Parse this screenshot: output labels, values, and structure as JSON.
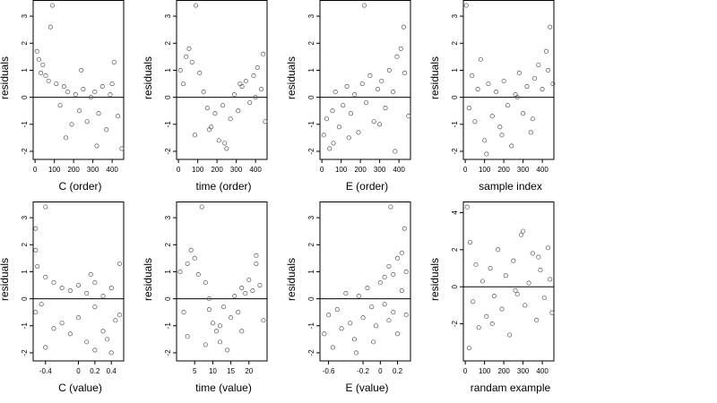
{
  "chart_data": [
    {
      "type": "scatter",
      "xlabel": "C (order)",
      "ylabel": "residuals",
      "xlim": [
        -10,
        460
      ],
      "ylim": [
        -2.3,
        3.6
      ],
      "xticks": [
        0,
        100,
        200,
        300,
        400
      ],
      "yticks": [
        -2,
        -1,
        0,
        1,
        2,
        3
      ],
      "hline": 0,
      "x": [
        10,
        20,
        30,
        40,
        55,
        70,
        90,
        110,
        130,
        150,
        170,
        190,
        210,
        230,
        250,
        270,
        290,
        310,
        330,
        350,
        370,
        390,
        410,
        430,
        450,
        80,
        160,
        240,
        320,
        400
      ],
      "y": [
        1.7,
        1.4,
        0.9,
        1.2,
        0.8,
        0.6,
        3.4,
        0.5,
        -0.3,
        0.4,
        0.2,
        -1.0,
        0.1,
        -0.5,
        0.3,
        -0.9,
        0.0,
        0.2,
        -0.6,
        0.4,
        -1.2,
        0.1,
        1.3,
        -0.7,
        -1.9,
        2.6,
        -1.5,
        1.0,
        -1.8,
        0.5
      ]
    },
    {
      "type": "scatter",
      "xlabel": "time (order)",
      "ylabel": "residuals",
      "xlim": [
        -10,
        460
      ],
      "ylim": [
        -2.3,
        3.6
      ],
      "xticks": [
        0,
        100,
        200,
        300,
        400
      ],
      "yticks": [
        -2,
        -1,
        0,
        1,
        2,
        3
      ],
      "hline": 0,
      "x": [
        10,
        25,
        40,
        55,
        70,
        90,
        110,
        130,
        150,
        170,
        190,
        210,
        230,
        250,
        270,
        290,
        310,
        330,
        350,
        370,
        390,
        410,
        430,
        450,
        85,
        160,
        240,
        320,
        400,
        440
      ],
      "y": [
        1.0,
        0.5,
        1.5,
        1.8,
        1.3,
        3.4,
        0.9,
        0.2,
        -0.4,
        -1.1,
        -0.6,
        -1.6,
        -0.3,
        -1.9,
        -0.8,
        0.1,
        -0.5,
        0.4,
        0.6,
        -0.2,
        0.8,
        1.1,
        0.3,
        -0.9,
        -1.4,
        -1.2,
        -1.7,
        0.5,
        0.0,
        1.6
      ]
    },
    {
      "type": "scatter",
      "xlabel": "E (order)",
      "ylabel": "residuals",
      "xlim": [
        -10,
        460
      ],
      "ylim": [
        -2.3,
        3.6
      ],
      "xticks": [
        0,
        100,
        200,
        300,
        400
      ],
      "yticks": [
        -2,
        -1,
        0,
        1,
        2,
        3
      ],
      "hline": 0,
      "x": [
        10,
        25,
        40,
        55,
        70,
        90,
        110,
        130,
        150,
        170,
        190,
        210,
        230,
        250,
        270,
        290,
        310,
        330,
        350,
        370,
        390,
        410,
        430,
        450,
        220,
        425,
        60,
        140,
        300,
        380
      ],
      "y": [
        -1.4,
        -0.8,
        -1.9,
        -0.5,
        0.2,
        -1.1,
        -0.3,
        0.4,
        -0.6,
        0.1,
        -1.3,
        0.5,
        -0.2,
        0.8,
        -0.9,
        0.3,
        0.6,
        -0.4,
        1.0,
        0.2,
        1.5,
        1.8,
        0.9,
        -0.7,
        3.4,
        2.6,
        -1.7,
        -1.5,
        -1.0,
        -2.0
      ]
    },
    {
      "type": "scatter",
      "xlabel": "sample index",
      "ylabel": "residuals",
      "xlim": [
        -10,
        460
      ],
      "ylim": [
        -2.3,
        3.6
      ],
      "xticks": [
        0,
        100,
        200,
        300,
        400
      ],
      "yticks": [
        -2,
        -1,
        0,
        1,
        2,
        3
      ],
      "hline": 0,
      "x": [
        5,
        20,
        35,
        50,
        65,
        80,
        100,
        120,
        140,
        160,
        180,
        200,
        220,
        240,
        260,
        280,
        300,
        320,
        340,
        360,
        380,
        400,
        420,
        440,
        455,
        110,
        190,
        270,
        350,
        430
      ],
      "y": [
        3.4,
        -0.4,
        0.8,
        -0.9,
        0.3,
        1.4,
        -1.6,
        0.5,
        -0.7,
        0.2,
        -1.1,
        0.6,
        -0.3,
        -1.8,
        0.1,
        0.9,
        -0.6,
        0.4,
        -1.3,
        0.7,
        1.2,
        0.3,
        1.7,
        2.6,
        0.5,
        -2.1,
        -1.4,
        0.0,
        -0.8,
        1.0
      ]
    },
    {
      "type": "scatter",
      "xlabel": "C (value)",
      "ylabel": "residuals",
      "xlim": [
        -0.55,
        0.55
      ],
      "ylim": [
        -2.3,
        3.6
      ],
      "xticks": [
        -0.4,
        0.0,
        0.2,
        0.4
      ],
      "yticks": [
        -2,
        -1,
        0,
        1,
        2,
        3
      ],
      "hline": 0,
      "x": [
        -0.52,
        -0.52,
        -0.52,
        -0.5,
        -0.4,
        -0.4,
        -0.4,
        -0.3,
        -0.3,
        -0.2,
        -0.2,
        -0.1,
        -0.1,
        0.0,
        0.0,
        0.1,
        0.1,
        0.2,
        0.2,
        0.2,
        0.3,
        0.3,
        0.4,
        0.4,
        0.5,
        0.5,
        -0.45,
        0.15,
        0.35,
        0.45
      ],
      "y": [
        1.8,
        2.6,
        -0.5,
        1.2,
        3.4,
        0.8,
        -1.8,
        0.6,
        -1.1,
        0.4,
        -0.9,
        0.3,
        -1.3,
        0.5,
        -0.7,
        0.2,
        -1.6,
        -0.3,
        -1.9,
        0.6,
        0.1,
        -1.2,
        0.4,
        -2.0,
        1.3,
        -0.6,
        -0.2,
        0.9,
        -1.5,
        -0.8
      ]
    },
    {
      "type": "scatter",
      "xlabel": "time (value)",
      "ylabel": "residuals",
      "xlim": [
        0,
        25
      ],
      "ylim": [
        -2.3,
        3.6
      ],
      "xticks": [
        5,
        10,
        15,
        20
      ],
      "yticks": [
        -2,
        -1,
        0,
        1,
        2,
        3
      ],
      "hline": 0,
      "x": [
        1,
        2,
        3,
        4,
        5,
        6,
        7,
        8,
        9,
        10,
        11,
        12,
        13,
        14,
        15,
        16,
        17,
        18,
        19,
        20,
        21,
        22,
        23,
        24,
        3,
        8,
        12,
        18,
        22,
        9
      ],
      "y": [
        1.0,
        -0.5,
        1.3,
        1.8,
        1.5,
        0.9,
        3.4,
        0.6,
        -0.4,
        -0.9,
        -1.2,
        -1.6,
        -0.3,
        -1.9,
        -0.7,
        0.1,
        -0.5,
        0.4,
        0.2,
        0.7,
        0.3,
        1.3,
        0.5,
        -0.8,
        -1.4,
        -1.7,
        -1.0,
        -1.2,
        1.6,
        0.0
      ]
    },
    {
      "type": "scatter",
      "xlabel": "E (value)",
      "ylabel": "residuals",
      "xlim": [
        -0.7,
        0.35
      ],
      "ylim": [
        -2.3,
        3.6
      ],
      "xticks": [
        -0.6,
        -0.2,
        0.0,
        0.2
      ],
      "yticks": [
        -2,
        -1,
        0,
        1,
        2,
        3
      ],
      "hline": 0,
      "x": [
        -0.65,
        -0.6,
        -0.55,
        -0.5,
        -0.45,
        -0.4,
        -0.35,
        -0.3,
        -0.25,
        -0.2,
        -0.15,
        -0.1,
        -0.05,
        0.0,
        0.05,
        0.1,
        0.1,
        0.15,
        0.15,
        0.2,
        0.2,
        0.25,
        0.25,
        0.3,
        0.3,
        0.12,
        0.28,
        -0.28,
        -0.08,
        0.05
      ],
      "y": [
        -1.3,
        -0.6,
        -1.8,
        -0.4,
        -1.1,
        0.2,
        -0.9,
        -1.5,
        0.1,
        -0.7,
        0.4,
        -0.3,
        -1.0,
        0.6,
        -0.2,
        1.2,
        -0.8,
        0.9,
        -0.5,
        1.5,
        -1.3,
        1.7,
        0.3,
        1.0,
        -0.6,
        3.4,
        2.6,
        -2.0,
        -1.6,
        0.8
      ]
    },
    {
      "type": "scatter",
      "xlabel": "randam example",
      "ylabel": "residuals",
      "xlim": [
        -10,
        460
      ],
      "ylim": [
        -4.0,
        4.6
      ],
      "xticks": [
        0,
        100,
        200,
        300,
        400
      ],
      "yticks": [
        -2,
        0,
        2,
        4
      ],
      "hline": 0,
      "x": [
        10,
        25,
        40,
        55,
        70,
        90,
        110,
        130,
        150,
        170,
        190,
        210,
        230,
        250,
        270,
        290,
        310,
        330,
        350,
        370,
        390,
        410,
        430,
        450,
        20,
        140,
        260,
        380,
        440,
        300
      ],
      "y": [
        4.3,
        2.4,
        -0.8,
        1.2,
        -2.2,
        0.3,
        -1.6,
        1.0,
        -0.5,
        2.0,
        -1.2,
        0.6,
        -2.6,
        1.4,
        -0.4,
        2.8,
        -1.0,
        0.2,
        1.8,
        -1.8,
        0.9,
        -0.6,
        2.1,
        -1.4,
        -3.3,
        -2.0,
        -0.2,
        1.6,
        0.4,
        3.0
      ]
    }
  ]
}
